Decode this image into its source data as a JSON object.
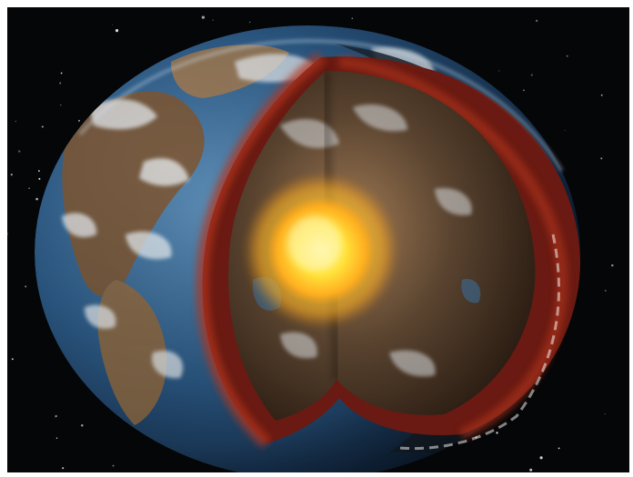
{
  "scene": {
    "subject": "earth-cutaway",
    "colors": {
      "space": "#050608",
      "ocean": "#2c5a86",
      "land": "#7a5a3c",
      "cloud": "#e8eef2",
      "mantle": "#6a1a12",
      "mantle_glow": "#b3361e",
      "inner_surface": "#5a4430",
      "core": "#ffe23a",
      "core_glow": "#ffb020"
    }
  }
}
